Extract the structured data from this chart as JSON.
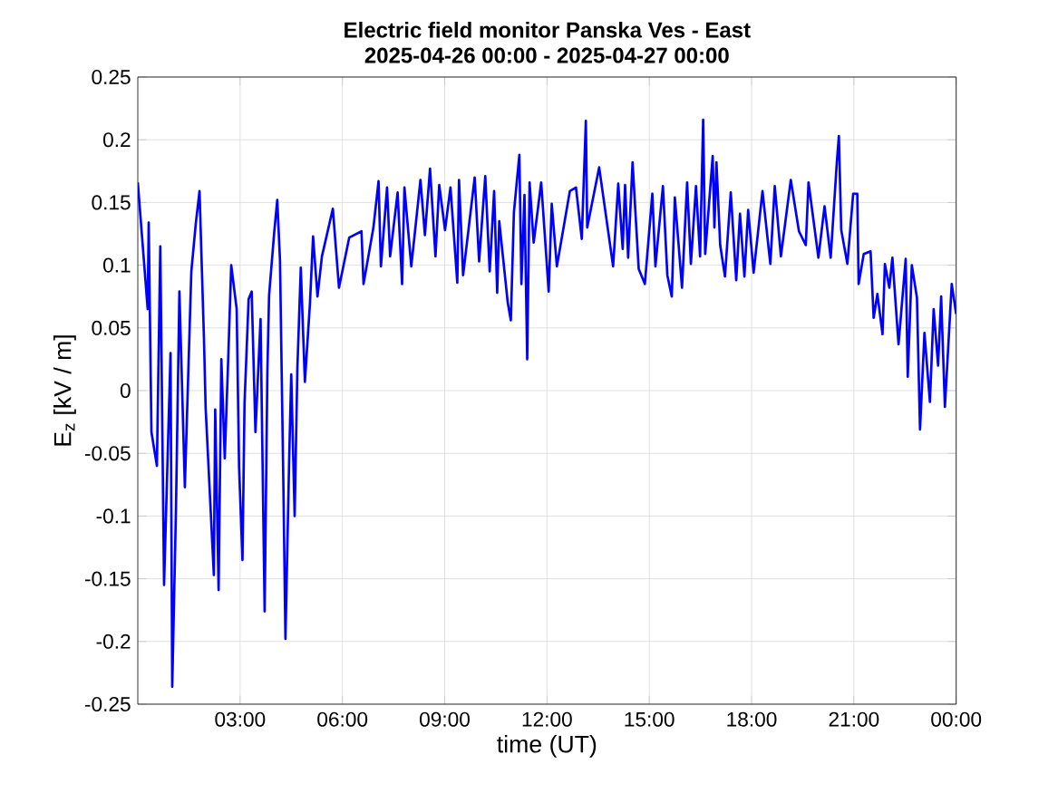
{
  "chart_data": {
    "type": "line",
    "title": "Electric field monitor Panska Ves - East",
    "subtitle": "2025-04-26 00:00 - 2025-04-27 00:00",
    "xlabel": "time (UT)",
    "ylabel": "E$_{z}$ [kV / m]",
    "color": "#0000ff",
    "grid": true,
    "marker": "none",
    "line_style": "solid",
    "xlim": [
      0,
      24
    ],
    "ylim": [
      -0.25,
      0.25
    ],
    "xticks": [
      {
        "value": 3,
        "label": "03:00"
      },
      {
        "value": 6,
        "label": "06:00"
      },
      {
        "value": 9,
        "label": "09:00"
      },
      {
        "value": 12,
        "label": "12:00"
      },
      {
        "value": 15,
        "label": "15:00"
      },
      {
        "value": 18,
        "label": "18:00"
      },
      {
        "value": 21,
        "label": "21:00"
      },
      {
        "value": 24,
        "label": "00:00"
      }
    ],
    "yticks": [
      -0.25,
      -0.2,
      -0.15,
      -0.1,
      -0.05,
      0,
      0.05,
      0.1,
      0.15,
      0.2,
      0.25
    ],
    "x": [
      0,
      0.29,
      0.32,
      0.4,
      0.56,
      0.66,
      0.77,
      0.96,
      1.01,
      1.12,
      1.22,
      1.38,
      1.57,
      1.7,
      1.81,
      1.94,
      1.99,
      2.23,
      2.27,
      2.37,
      2.45,
      2.55,
      2.65,
      2.74,
      2.9,
      2.97,
      3.07,
      3.13,
      3.25,
      3.34,
      3.45,
      3.6,
      3.72,
      3.8,
      3.85,
      4.0,
      4.09,
      4.17,
      4.27,
      4.33,
      4.44,
      4.5,
      4.6,
      4.68,
      4.78,
      4.9,
      5.05,
      5.14,
      5.27,
      5.4,
      5.72,
      5.9,
      6.2,
      6.56,
      6.62,
      6.91,
      7.06,
      7.13,
      7.31,
      7.4,
      7.62,
      7.75,
      7.82,
      8.02,
      8.29,
      8.42,
      8.57,
      8.73,
      8.84,
      9.01,
      9.17,
      9.37,
      9.42,
      9.54,
      9.88,
      10.01,
      10.19,
      10.32,
      10.45,
      10.54,
      10.6,
      10.85,
      10.94,
      11.03,
      11.19,
      11.25,
      11.34,
      11.42,
      11.49,
      11.61,
      11.83,
      12.05,
      12.14,
      12.29,
      12.67,
      12.85,
      13.02,
      13.14,
      13.18,
      13.53,
      13.94,
      14.09,
      14.22,
      14.29,
      14.38,
      14.51,
      14.69,
      14.87,
      15.09,
      15.18,
      15.4,
      15.53,
      15.66,
      15.75,
      15.96,
      16.11,
      16.22,
      16.37,
      16.49,
      16.58,
      16.64,
      16.86,
      16.91,
      16.97,
      17.08,
      17.22,
      17.39,
      17.55,
      17.66,
      17.79,
      17.9,
      18.06,
      18.32,
      18.55,
      18.68,
      18.86,
      19.15,
      19.39,
      19.59,
      19.67,
      19.96,
      20.14,
      20.32,
      20.5,
      20.56,
      20.63,
      20.81,
      20.98,
      21.1,
      21.14,
      21.29,
      21.49,
      21.58,
      21.69,
      21.84,
      21.91,
      22.04,
      22.13,
      22.31,
      22.52,
      22.58,
      22.7,
      22.85,
      22.94,
      23.07,
      23.23,
      23.34,
      23.47,
      23.56,
      23.67,
      23.87,
      24.0
    ],
    "values": [
      0.166,
      0.065,
      0.134,
      -0.033,
      -0.06,
      0.115,
      -0.155,
      0.03,
      -0.236,
      -0.094,
      0.079,
      -0.077,
      0.095,
      0.133,
      0.159,
      0.042,
      -0.014,
      -0.147,
      -0.015,
      -0.159,
      0.025,
      -0.054,
      0.024,
      0.1,
      0.065,
      -0.061,
      -0.135,
      -0.01,
      0.073,
      0.079,
      -0.033,
      0.057,
      -0.176,
      0.015,
      0.076,
      0.126,
      0.152,
      0.104,
      -0.076,
      -0.198,
      -0.054,
      0.013,
      -0.1,
      0.018,
      0.098,
      0.007,
      0.07,
      0.123,
      0.075,
      0.107,
      0.145,
      0.082,
      0.122,
      0.127,
      0.085,
      0.13,
      0.167,
      0.099,
      0.162,
      0.107,
      0.158,
      0.085,
      0.162,
      0.099,
      0.168,
      0.124,
      0.177,
      0.107,
      0.164,
      0.128,
      0.162,
      0.086,
      0.168,
      0.092,
      0.17,
      0.103,
      0.171,
      0.095,
      0.159,
      0.078,
      0.135,
      0.07,
      0.056,
      0.142,
      0.188,
      0.085,
      0.156,
      0.025,
      0.166,
      0.118,
      0.166,
      0.079,
      0.149,
      0.099,
      0.159,
      0.162,
      0.121,
      0.215,
      0.13,
      0.178,
      0.099,
      0.165,
      0.113,
      0.164,
      0.106,
      0.182,
      0.097,
      0.085,
      0.157,
      0.099,
      0.163,
      0.092,
      0.075,
      0.154,
      0.082,
      0.166,
      0.101,
      0.163,
      0.107,
      0.216,
      0.109,
      0.187,
      0.13,
      0.182,
      0.116,
      0.091,
      0.158,
      0.088,
      0.141,
      0.091,
      0.144,
      0.094,
      0.159,
      0.101,
      0.163,
      0.107,
      0.168,
      0.127,
      0.116,
      0.166,
      0.106,
      0.147,
      0.106,
      0.182,
      0.203,
      0.128,
      0.101,
      0.157,
      0.157,
      0.085,
      0.109,
      0.111,
      0.058,
      0.077,
      0.045,
      0.101,
      0.082,
      0.106,
      0.037,
      0.105,
      0.011,
      0.1,
      0.074,
      -0.031,
      0.046,
      -0.009,
      0.065,
      0.02,
      0.075,
      -0.013,
      0.085,
      0.061
    ]
  }
}
